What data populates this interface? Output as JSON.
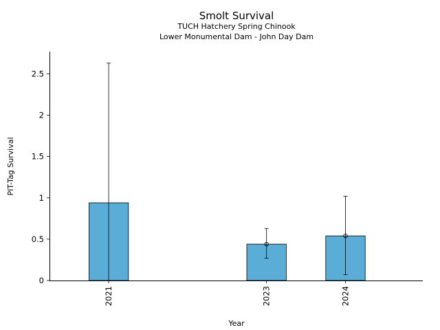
{
  "chart_data": {
    "type": "bar",
    "title": "Smolt Survival",
    "subtitle_lines": [
      "TUCH Hatchery Spring Chinook",
      "Lower Monumental Dam - John Day Dam"
    ],
    "xlabel": "Year",
    "ylabel": "PIT-Tag Survival",
    "x": [
      2021,
      2023,
      2024
    ],
    "x_tick_labels": [
      "2021",
      "2023",
      "2024"
    ],
    "xlim": [
      2020.25,
      2024.98
    ],
    "values": [
      0.94,
      0.44,
      0.54
    ],
    "error_low": [
      0.0,
      0.27,
      0.07
    ],
    "error_high": [
      2.63,
      0.63,
      1.02
    ],
    "point_markers": [
      false,
      true,
      true
    ],
    "bar_width_years": 0.5,
    "ylim": [
      0,
      2.77
    ],
    "y_ticks": [
      0,
      0.5,
      1,
      1.5,
      2,
      2.5
    ],
    "y_tick_labels": [
      "0",
      "0.5",
      "1",
      "1.5",
      "2",
      "2.5"
    ],
    "grid": false,
    "colors": {
      "bar_fill": "#5aadd6",
      "bar_edge": "#000000",
      "axis": "#000000"
    }
  }
}
